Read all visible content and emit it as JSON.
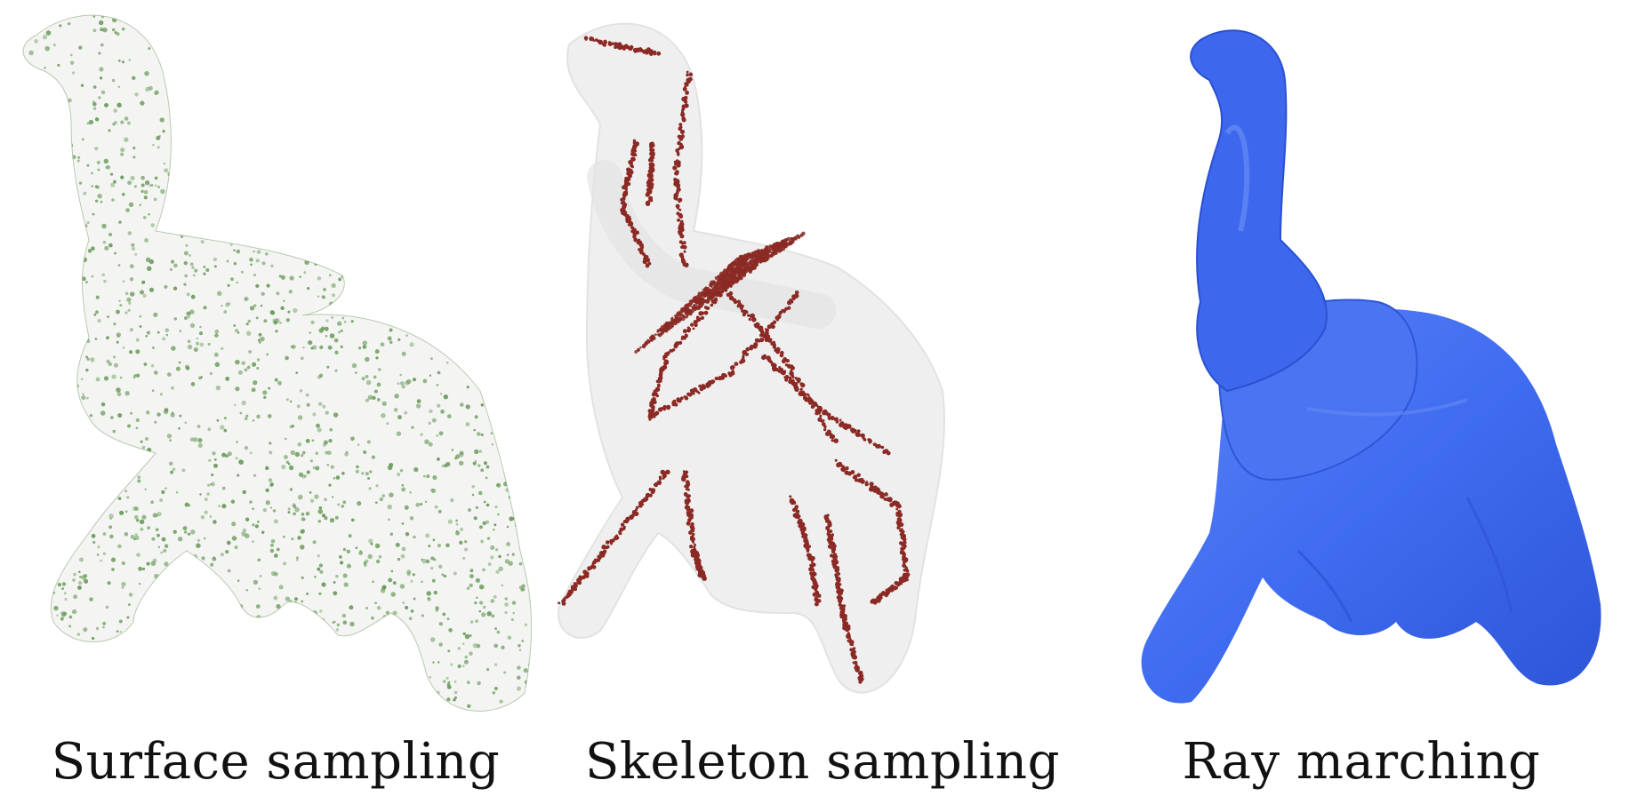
{
  "panels": [
    {
      "caption": "Surface sampling",
      "style": "point-cloud",
      "point_color": "#6a9a5a"
    },
    {
      "caption": "Skeleton sampling",
      "style": "skeleton-points",
      "point_color": "#8b2a25",
      "shell_color": "#e6e6e6"
    },
    {
      "caption": "Ray marching",
      "style": "rendered-surface",
      "surface_color": "#3f6cf0"
    }
  ]
}
